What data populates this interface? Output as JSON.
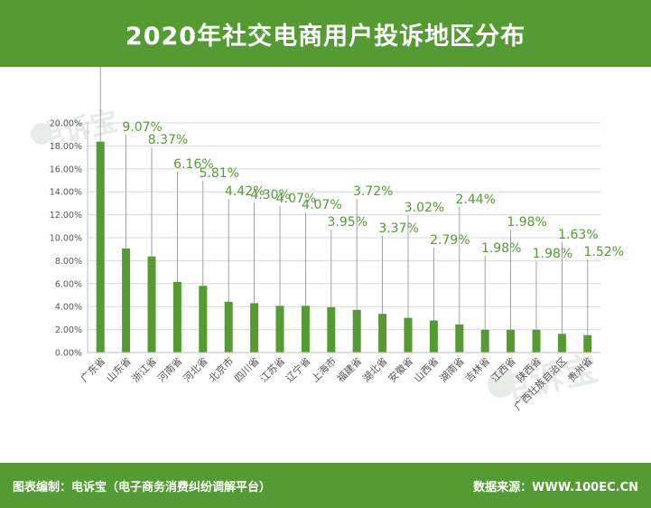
{
  "title": "2020年社交电商用户投诉地区分布",
  "footer": {
    "left": "图表编制：电诉宝（电子商务消费纠纷调解平台）",
    "right": "数据来源：WWW.100EC.CN"
  },
  "watermark": "电诉宝",
  "colors": {
    "bar": "#559a33",
    "header": "#559a33",
    "label": "#559a33"
  },
  "chart_data": {
    "type": "bar",
    "title": "2020年社交电商用户投诉地区分布",
    "xlabel": "",
    "ylabel": "",
    "ylim": [
      0,
      20
    ],
    "y_ticks": [
      "0.00%",
      "2.00%",
      "4.00%",
      "6.00%",
      "8.00%",
      "10.00%",
      "12.00%",
      "14.00%",
      "16.00%",
      "18.00%",
      "20.00%"
    ],
    "grid": true,
    "categories": [
      "广东省",
      "山东省",
      "浙江省",
      "河南省",
      "河北省",
      "北京市",
      "四川省",
      "江苏省",
      "辽宁省",
      "上海市",
      "福建省",
      "湖北省",
      "安徽省",
      "山西省",
      "湖南省",
      "吉林省",
      "江西省",
      "陕西省",
      "广西壮族自治区",
      "贵州省"
    ],
    "values": [
      18.37,
      9.07,
      8.37,
      6.16,
      5.81,
      4.42,
      4.3,
      4.07,
      4.07,
      3.95,
      3.72,
      3.37,
      3.02,
      2.79,
      2.44,
      1.98,
      1.98,
      1.98,
      1.63,
      1.52
    ],
    "data_labels": [
      "18.37%",
      "9.07%",
      "8.37%",
      "6.16%",
      "5.81%",
      "4.42%",
      "4.30%",
      "4.07%",
      "4.07%",
      "3.95%",
      "3.72%",
      "3.37%",
      "3.02%",
      "2.79%",
      "2.44%",
      "1.98%",
      "1.98%",
      "1.98%",
      "1.63%",
      "1.52%"
    ]
  }
}
